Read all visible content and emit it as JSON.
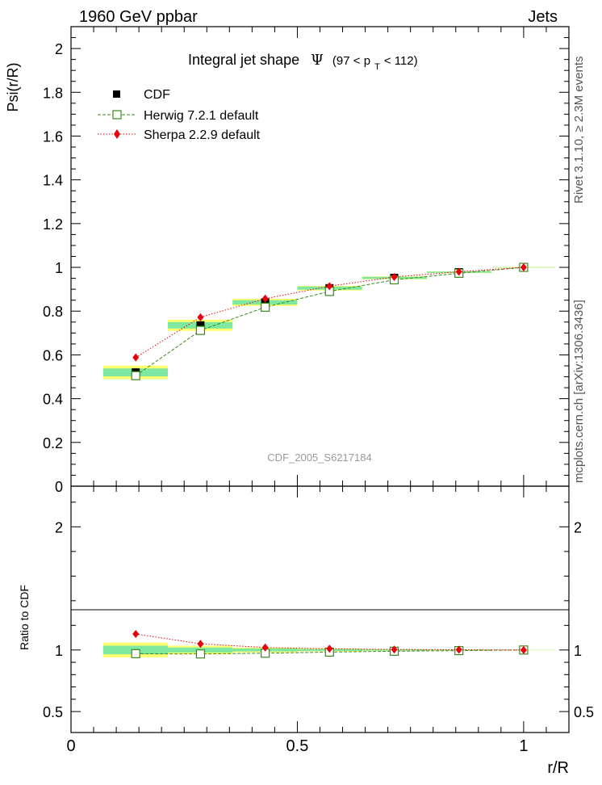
{
  "header": {
    "left": "1960 GeV ppbar",
    "right": "Jets"
  },
  "side_text": {
    "rivet": "Rivet 3.1.10, ≥ 2.3M events",
    "mcplots": "mcplots.cern.ch [arXiv:1306.3436]"
  },
  "watermark": "CDF_2005_S6217184",
  "chart_data": {
    "type": "scatter",
    "title": {
      "prefix": "Integral jet shape",
      "symbol": "Ψ",
      "range_open": "(97 < p",
      "range_sub": "T",
      "range_close": " < 112)"
    },
    "xlabel": "r/R",
    "ylabel": "Psi(r/R)",
    "ratio_ylabel": "Ratio to CDF",
    "xlim": [
      0,
      1.1
    ],
    "ylim": [
      0,
      2.1
    ],
    "ratio_ylim": [
      0.33,
      2.33
    ],
    "x_ticks": [
      "0",
      "0.5",
      "1"
    ],
    "y_ticks": [
      "0",
      "0.2",
      "0.4",
      "0.6",
      "0.8",
      "1",
      "1.2",
      "1.4",
      "1.6",
      "1.8",
      "2"
    ],
    "ratio_y_ticks": [
      "0.5",
      "1",
      "2"
    ],
    "legend_position": "top-left",
    "x": [
      0.143,
      0.286,
      0.429,
      0.571,
      0.714,
      0.857,
      1.0
    ],
    "series": [
      {
        "name": "CDF",
        "style": "data",
        "color": "#000000",
        "values": [
          0.52,
          0.735,
          0.84,
          0.905,
          0.952,
          0.978,
          1.0
        ],
        "ratio": [
          1,
          1,
          1,
          1,
          1,
          1,
          1
        ]
      },
      {
        "name": "Herwig 7.2.1 default",
        "style": "mc-square",
        "color": "#3a8a1a",
        "values": [
          0.505,
          0.712,
          0.818,
          0.89,
          0.943,
          0.973,
          1.0
        ],
        "ratio": [
          0.97,
          0.968,
          0.974,
          0.983,
          0.99,
          0.995,
          1.0
        ]
      },
      {
        "name": "Sherpa 2.2.9 default",
        "style": "mc-diamond",
        "color": "#e8000b",
        "values": [
          0.588,
          0.772,
          0.857,
          0.914,
          0.956,
          0.98,
          1.0
        ],
        "ratio": [
          1.13,
          1.05,
          1.02,
          1.01,
          1.004,
          1.002,
          1.0
        ]
      }
    ],
    "uncertainty_bands": {
      "x_edges": [
        0.071,
        0.214,
        0.357,
        0.5,
        0.643,
        0.786,
        0.929,
        1.07
      ],
      "stat": [
        0.035,
        0.02,
        0.012,
        0.008,
        0.005,
        0.003,
        0.001
      ],
      "total": [
        0.06,
        0.035,
        0.02,
        0.012,
        0.007,
        0.004,
        0.002
      ],
      "stat_color": "#7ee8a0",
      "total_color": "#ffff70"
    }
  }
}
